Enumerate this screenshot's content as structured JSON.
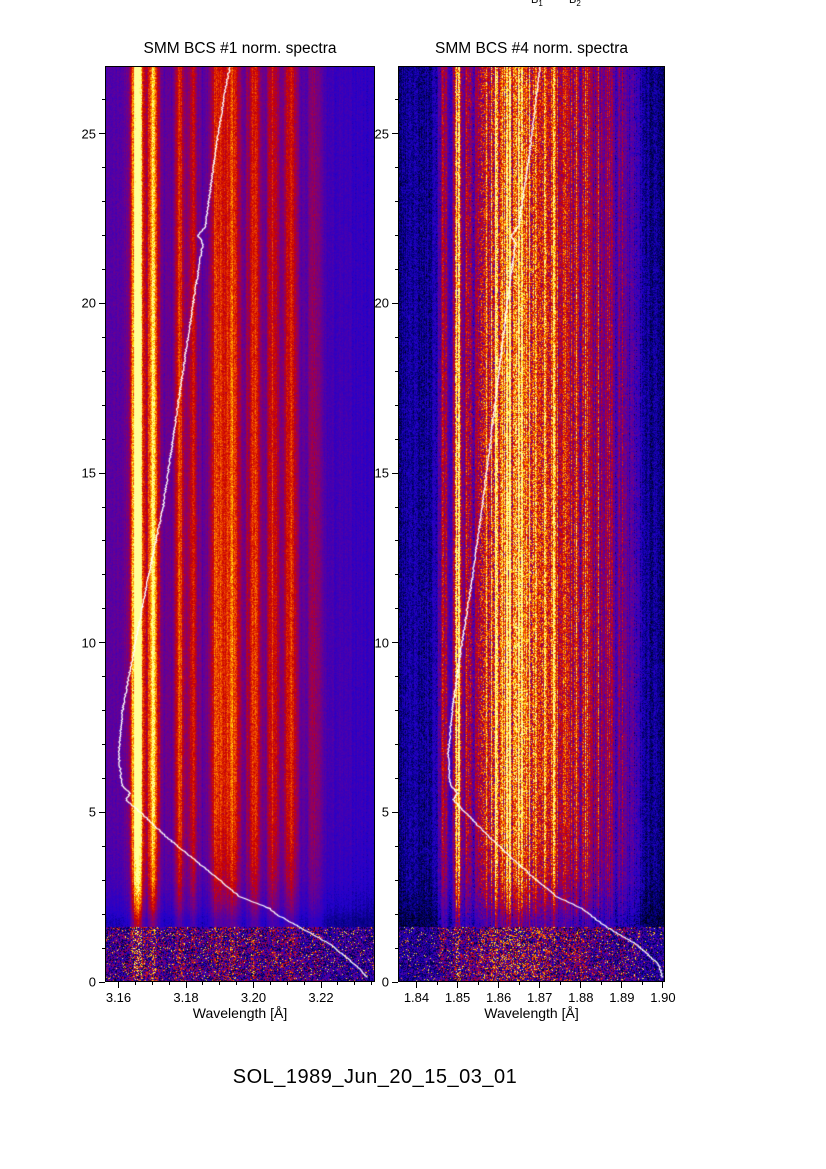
{
  "caption": "SOL_1989_Jun_20_15_03_01",
  "annotations": [
    {
      "text": "B",
      "sub": "1"
    },
    {
      "text": "B",
      "sub": "2"
    }
  ],
  "colormap": [
    [
      0.0,
      "#000010"
    ],
    [
      0.06,
      "#00006e"
    ],
    [
      0.15,
      "#2200cc"
    ],
    [
      0.3,
      "#5a00a0"
    ],
    [
      0.4,
      "#7d0078"
    ],
    [
      0.5,
      "#a80040"
    ],
    [
      0.58,
      "#c80000"
    ],
    [
      0.7,
      "#e63200"
    ],
    [
      0.8,
      "#ff7d00"
    ],
    [
      0.9,
      "#ffd200"
    ],
    [
      1.0,
      "#ffff96"
    ]
  ],
  "chart_data": [
    {
      "type": "heatmap",
      "title": "SMM BCS #1 norm. spectra",
      "xlabel": "Wavelength [Å]",
      "ylabel": "",
      "xlim": [
        3.156,
        3.236
      ],
      "ylim": [
        0,
        27
      ],
      "xticks": {
        "values": [
          3.16,
          3.18,
          3.2,
          3.22
        ],
        "labels": [
          "3.16",
          "3.18",
          "3.20",
          "3.22"
        ],
        "minor_step": 0.005
      },
      "yticks": {
        "values": [
          0,
          5,
          10,
          15,
          20,
          25
        ],
        "labels": [
          "0",
          "5",
          "10",
          "15",
          "20",
          "25"
        ],
        "minor_step": 1
      },
      "seed": 7,
      "noise": 0.14,
      "stripe": 0.28,
      "add": 0.04,
      "speckle_below_t": 1.6,
      "continuum": [
        [
          3.156,
          0.3
        ],
        [
          3.165,
          0.34
        ],
        [
          3.2,
          0.3
        ],
        [
          3.215,
          0.26
        ],
        [
          3.236,
          0.2
        ]
      ],
      "lines": [
        [
          3.1655,
          0.0013,
          0.95
        ],
        [
          3.1702,
          0.0012,
          0.62
        ],
        [
          3.1782,
          0.001,
          0.36
        ],
        [
          3.1822,
          0.001,
          0.3
        ],
        [
          3.1892,
          0.0013,
          0.42
        ],
        [
          3.1938,
          0.0018,
          0.45
        ],
        [
          3.2002,
          0.0014,
          0.4
        ],
        [
          3.2058,
          0.0013,
          0.36
        ],
        [
          3.2112,
          0.0016,
          0.38
        ],
        [
          3.2182,
          0.0016,
          0.2
        ]
      ],
      "time_profile": [
        [
          0,
          0.4
        ],
        [
          1.8,
          0.42
        ],
        [
          2.2,
          0.6
        ],
        [
          3,
          0.8
        ],
        [
          4,
          0.9
        ],
        [
          5,
          0.95
        ],
        [
          7,
          1.0
        ],
        [
          12,
          1.0
        ],
        [
          20,
          0.95
        ],
        [
          27,
          0.9
        ]
      ],
      "overlay_curve": [
        [
          0.1,
          3.2339
        ],
        [
          0.5,
          3.2301
        ],
        [
          1.1,
          3.2227
        ],
        [
          1.6,
          3.2138
        ],
        [
          2.0,
          3.2065
        ],
        [
          2.15,
          3.2049
        ],
        [
          2.5,
          3.196
        ],
        [
          3.1,
          3.1886
        ],
        [
          3.7,
          3.1812
        ],
        [
          4.3,
          3.1738
        ],
        [
          5.0,
          3.1664
        ],
        [
          5.35,
          3.1622
        ],
        [
          5.55,
          3.1634
        ],
        [
          5.8,
          3.161
        ],
        [
          6.7,
          3.16
        ],
        [
          8.0,
          3.1612
        ],
        [
          10.0,
          3.165
        ],
        [
          12.0,
          3.169
        ],
        [
          14.0,
          3.1732
        ],
        [
          17.0,
          3.1776
        ],
        [
          20.0,
          3.1821
        ],
        [
          21.8,
          3.185
        ],
        [
          22.0,
          3.1836
        ],
        [
          22.3,
          3.1858
        ],
        [
          24.4,
          3.1886
        ],
        [
          26.3,
          3.1916
        ],
        [
          27.0,
          3.193
        ]
      ]
    },
    {
      "type": "heatmap",
      "title": "SMM BCS #4 norm. spectra",
      "xlabel": "Wavelength [Å]",
      "ylabel": "",
      "xlim": [
        1.8355,
        1.9005
      ],
      "ylim": [
        0,
        27
      ],
      "xticks": {
        "values": [
          1.84,
          1.85,
          1.86,
          1.87,
          1.88,
          1.89,
          1.9
        ],
        "labels": [
          "1.84",
          "1.85",
          "1.86",
          "1.87",
          "1.88",
          "1.89",
          "1.90"
        ],
        "minor_step": 0.005
      },
      "yticks": {
        "values": [
          0,
          5,
          10,
          15,
          20,
          25
        ],
        "labels": [
          "0",
          "5",
          "10",
          "15",
          "20",
          "25"
        ],
        "minor_step": 1
      },
      "seed": 1989,
      "noise": 0.3,
      "stripe": 0.75,
      "add": 0.11,
      "speckle_below_t": 1.6,
      "continuum": [
        [
          1.8355,
          0.1
        ],
        [
          1.845,
          0.11
        ],
        [
          1.85,
          0.13
        ],
        [
          1.8555,
          0.28
        ],
        [
          1.865,
          0.36
        ],
        [
          1.872,
          0.32
        ],
        [
          1.88,
          0.24
        ],
        [
          1.888,
          0.16
        ],
        [
          1.894,
          0.11
        ],
        [
          1.9005,
          0.08
        ]
      ],
      "lines": [
        [
          1.8465,
          0.0009,
          0.4
        ],
        [
          1.85,
          0.0007,
          0.95
        ],
        [
          1.8527,
          0.0008,
          0.45
        ],
        [
          1.856,
          0.001,
          0.55
        ],
        [
          1.8592,
          0.0012,
          0.6
        ],
        [
          1.8622,
          0.001,
          0.55
        ],
        [
          1.8652,
          0.0012,
          0.6
        ],
        [
          1.8682,
          0.001,
          0.5
        ],
        [
          1.8707,
          0.0009,
          0.45
        ],
        [
          1.8732,
          0.001,
          0.48
        ],
        [
          1.8762,
          0.0009,
          0.42
        ],
        [
          1.8788,
          0.0009,
          0.4
        ],
        [
          1.8812,
          0.0009,
          0.4
        ],
        [
          1.8842,
          0.0009,
          0.35
        ],
        [
          1.8872,
          0.001,
          0.32
        ],
        [
          1.8902,
          0.0009,
          0.28
        ],
        [
          1.8932,
          0.001,
          0.22
        ]
      ],
      "time_profile": [
        [
          0,
          0.4
        ],
        [
          1.8,
          0.42
        ],
        [
          2.2,
          0.6
        ],
        [
          3,
          0.8
        ],
        [
          4,
          0.9
        ],
        [
          5,
          0.95
        ],
        [
          7,
          1.0
        ],
        [
          12,
          1.0
        ],
        [
          20,
          0.95
        ],
        [
          27,
          0.9
        ]
      ],
      "overlay_curve": [
        [
          0.1,
          1.8999
        ],
        [
          0.5,
          1.899
        ],
        [
          1.1,
          1.8935
        ],
        [
          1.6,
          1.8863
        ],
        [
          2.15,
          1.8803
        ],
        [
          2.5,
          1.8742
        ],
        [
          3.1,
          1.8682
        ],
        [
          3.7,
          1.8627
        ],
        [
          4.3,
          1.8574
        ],
        [
          5.0,
          1.8518
        ],
        [
          5.35,
          1.849
        ],
        [
          5.55,
          1.8499
        ],
        [
          5.8,
          1.8482
        ],
        [
          6.7,
          1.8477
        ],
        [
          8.0,
          1.8487
        ],
        [
          10.0,
          1.8511
        ],
        [
          12.0,
          1.8537
        ],
        [
          14.0,
          1.856
        ],
        [
          17.0,
          1.8591
        ],
        [
          20.0,
          1.8621
        ],
        [
          21.8,
          1.8641
        ],
        [
          22.0,
          1.863
        ],
        [
          22.3,
          1.8649
        ],
        [
          24.4,
          1.8675
        ],
        [
          26.3,
          1.8694
        ],
        [
          27.0,
          1.8701
        ]
      ]
    }
  ]
}
